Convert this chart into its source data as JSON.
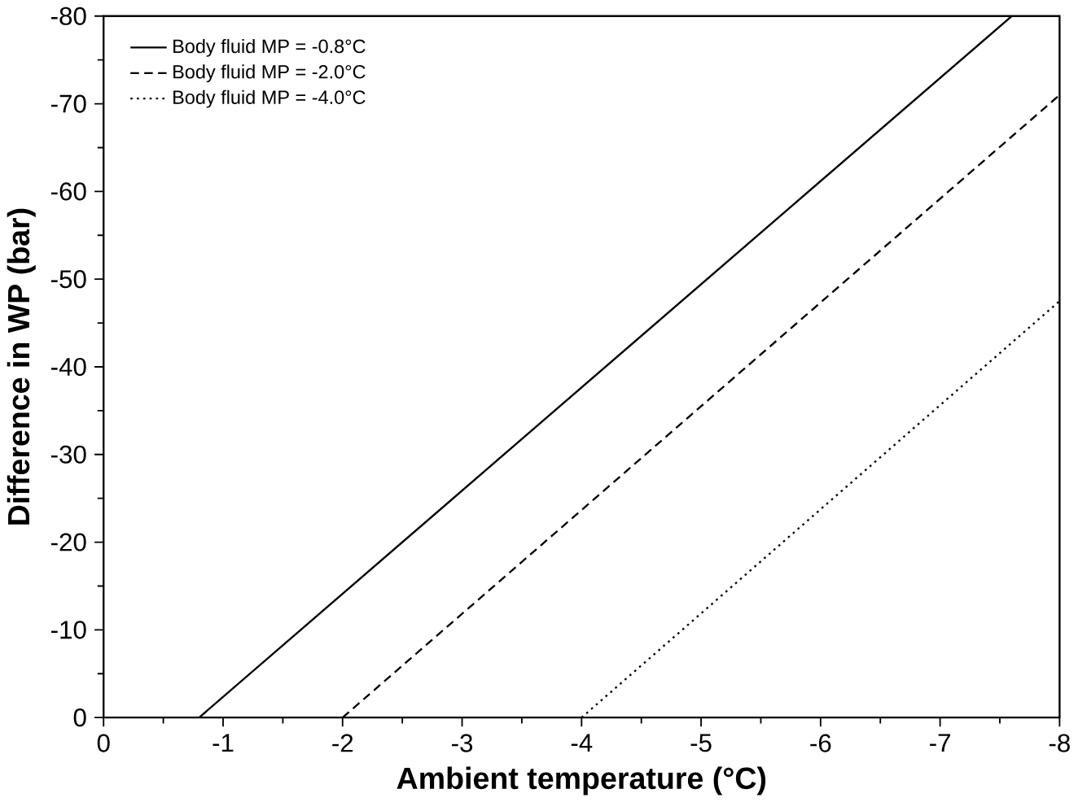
{
  "chart_data": {
    "type": "line",
    "xlabel": "Ambient temperature (°C)",
    "ylabel": "Difference in WP (bar)",
    "xlim": [
      0,
      -8
    ],
    "ylim": [
      0,
      -80
    ],
    "xticks": [
      0,
      -1,
      -2,
      -3,
      -4,
      -5,
      -6,
      -7,
      -8
    ],
    "yticks": [
      0,
      -10,
      -20,
      -30,
      -40,
      -50,
      -60,
      -70,
      -80
    ],
    "legend": "top left",
    "grid": false,
    "series": [
      {
        "name": "Body fluid MP = -0.8°C",
        "color": "#000000",
        "line_style": "solid",
        "x": [
          -0.8,
          -7.6
        ],
        "values": [
          0,
          -80
        ]
      },
      {
        "name": "Body fluid MP = -2.0°C",
        "color": "#000000",
        "line_style": "dashed",
        "x": [
          -2.0,
          -8
        ],
        "values": [
          0,
          -71
        ]
      },
      {
        "name": "Body fluid MP = -4.0°C",
        "color": "#000000",
        "line_style": "dotted",
        "x": [
          -4.0,
          -8
        ],
        "values": [
          0,
          -47.5
        ]
      }
    ]
  }
}
